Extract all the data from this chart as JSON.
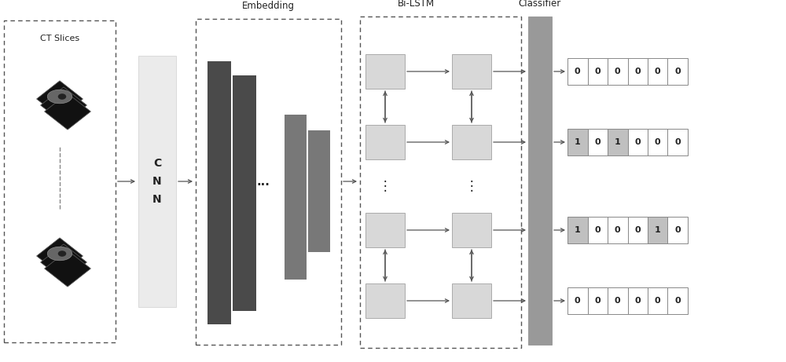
{
  "bg_color": "#ffffff",
  "fig_width": 10.0,
  "fig_height": 4.61,
  "ct_slices_label": "CT Slices",
  "cnn_label": "C\nN\nN",
  "embedding_label": "Embedding",
  "bilstm_label": "Bi-LSTM",
  "classifier_label": "Classifier",
  "output_rows": [
    {
      "values": [
        0,
        0,
        0,
        0,
        0,
        0
      ],
      "highlighted": []
    },
    {
      "values": [
        1,
        0,
        1,
        0,
        0,
        0
      ],
      "highlighted": [
        0,
        2
      ]
    },
    {
      "values": [
        1,
        0,
        0,
        0,
        1,
        0
      ],
      "highlighted": [
        0,
        4
      ]
    },
    {
      "values": [
        0,
        0,
        0,
        0,
        0,
        0
      ],
      "highlighted": []
    }
  ],
  "colors": {
    "dashed_border": "#555555",
    "cnn_box_fill": "#e8e8e8",
    "embedding_bar_dark": "#4a4a4a",
    "embedding_bar_mid": "#787878",
    "lstm_box_fill": "#d8d8d8",
    "classifier_fill": "#999999",
    "arrow": "#555555",
    "output_border": "#888888",
    "output_highlighted_fill": "#c0c0c0",
    "output_white_fill": "#ffffff",
    "text_color": "#222222"
  },
  "xlim": [
    0,
    10
  ],
  "ylim": [
    0,
    4.61
  ]
}
